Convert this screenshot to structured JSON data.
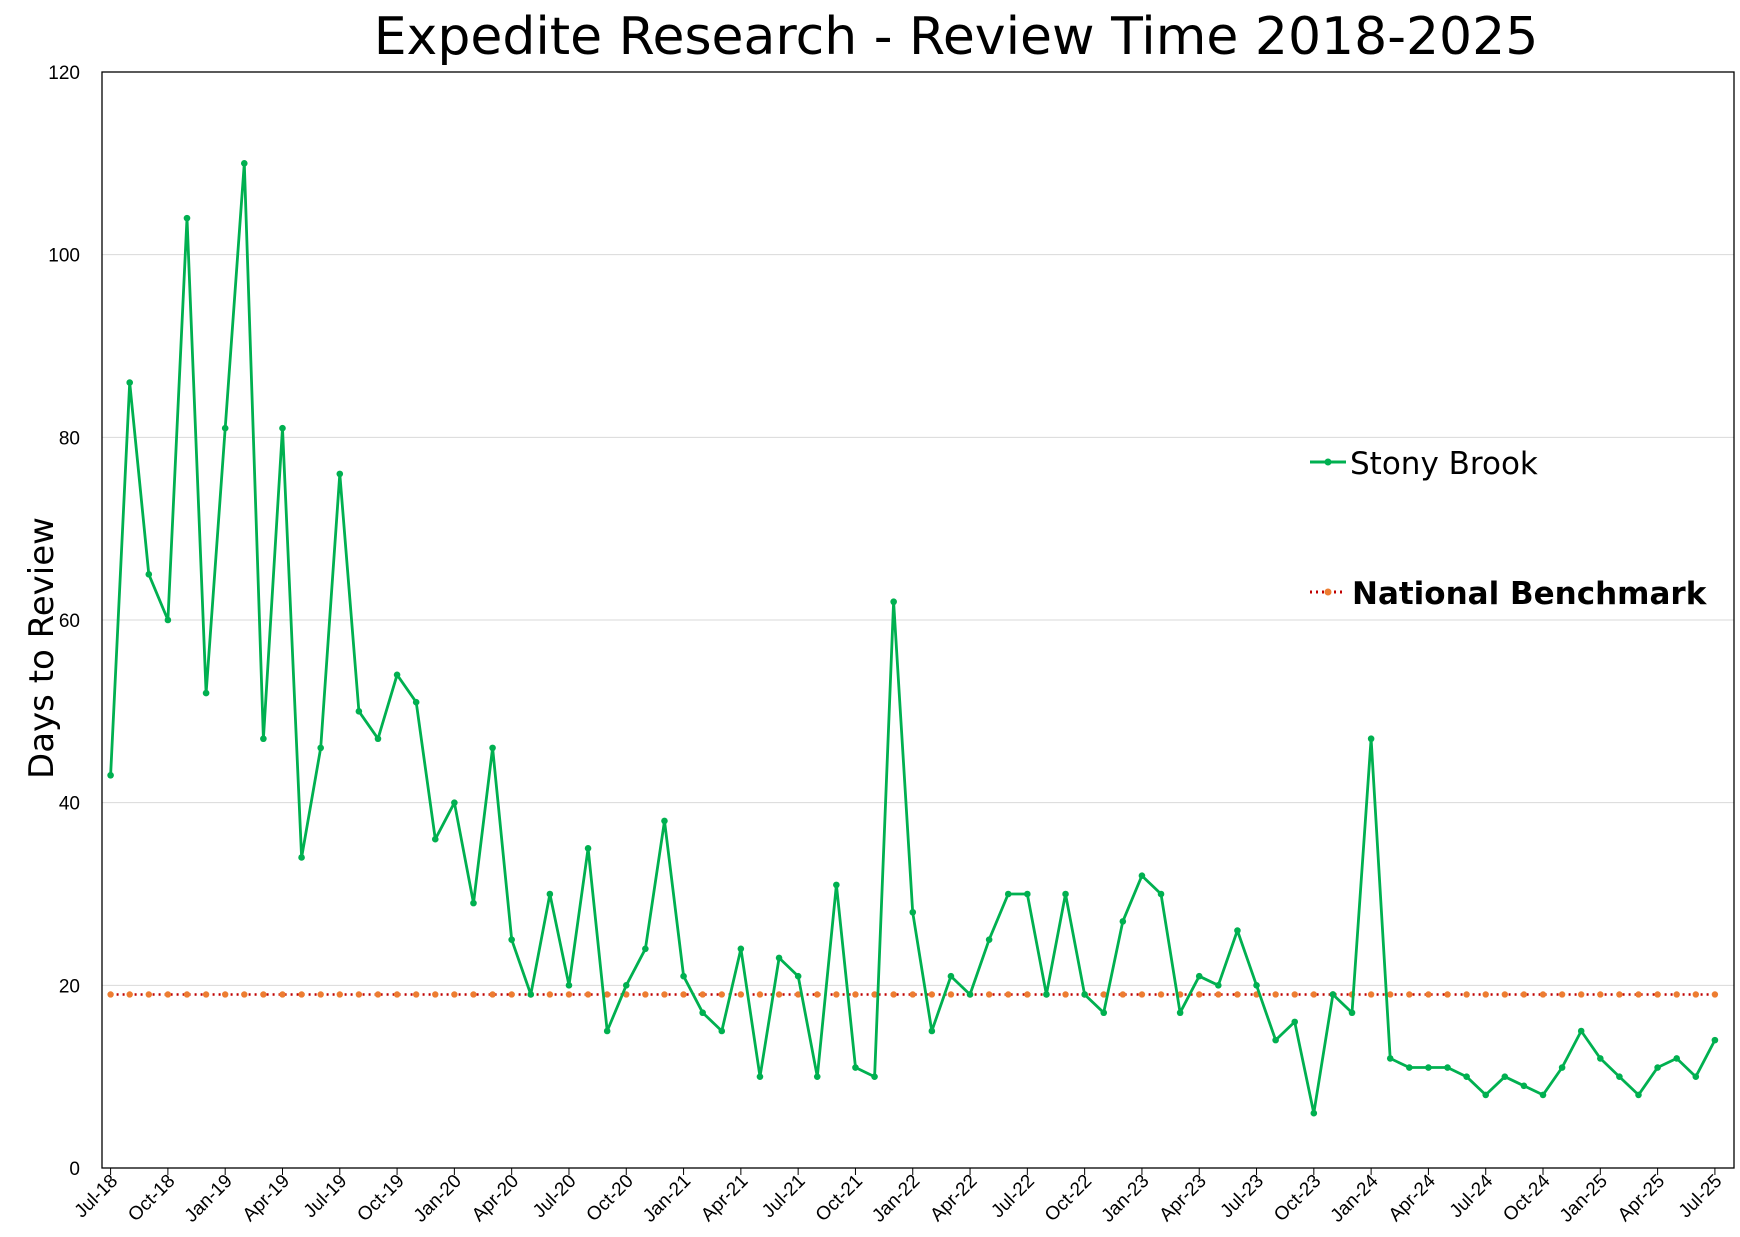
{
  "chart_data": {
    "type": "line",
    "title": "Expedite Research - Review Time 2018-2025",
    "xlabel": "",
    "ylabel": "Days to Review",
    "ylim": [
      0,
      120
    ],
    "yticks": [
      0,
      20,
      40,
      60,
      80,
      100,
      120
    ],
    "grid": "horizontal",
    "legend_position": "right",
    "x_tick_labels": [
      "Jul-18",
      "Oct-18",
      "Jan-19",
      "Apr-19",
      "Jul-19",
      "Oct-19",
      "Jan-20",
      "Apr-20",
      "Jul-20",
      "Oct-20",
      "Jan-21",
      "Apr-21",
      "Jul-21",
      "Oct-21",
      "Jan-22",
      "Apr-22",
      "Jul-22",
      "Oct-22",
      "Jan-23",
      "Apr-23",
      "Jul-23",
      "Oct-23",
      "Jan-24",
      "Apr-24",
      "Jul-24",
      "Oct-24",
      "Jan-25",
      "Apr-25",
      "Jul-25"
    ],
    "x_tick_step_months": 3,
    "series": [
      {
        "name": "Stony Brook",
        "color": "#00b050",
        "values": [
          43,
          86,
          65,
          60,
          104,
          52,
          81,
          110,
          47,
          81,
          34,
          46,
          76,
          50,
          47,
          54,
          51,
          36,
          40,
          29,
          46,
          25,
          19,
          30,
          20,
          35,
          15,
          20,
          24,
          38,
          21,
          17,
          15,
          24,
          10,
          23,
          21,
          10,
          31,
          11,
          10,
          62,
          28,
          15,
          21,
          19,
          25,
          30,
          30,
          19,
          30,
          19,
          17,
          27,
          32,
          30,
          17,
          21,
          20,
          26,
          20,
          14,
          16,
          6,
          19,
          17,
          47,
          12,
          11,
          11,
          11,
          10,
          8,
          10,
          9,
          8,
          11,
          15,
          12,
          10,
          8,
          11,
          12,
          10,
          14
        ]
      },
      {
        "name": "National Benchmark",
        "color": "#ed7d31",
        "line_color": "#c00000",
        "style": "dotted",
        "constant_value": 19
      }
    ]
  }
}
